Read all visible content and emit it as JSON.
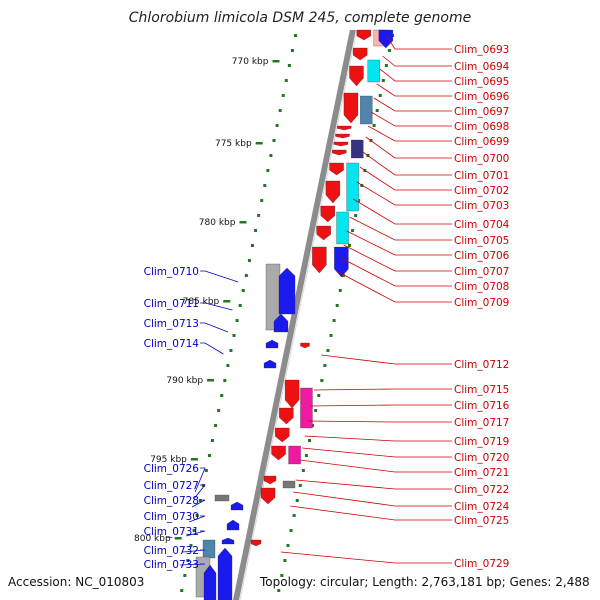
{
  "title": "Chlorobium limicola DSM 245, complete genome",
  "footer": {
    "accession": "Accession: NC_010803",
    "topology": "Topology: circular; Length: 2,763,181 bp; Genes: 2,488"
  },
  "colors": {
    "forward_label": "#cc0000",
    "reverse_label": "#0000cc",
    "backbone": "#8c8c8c",
    "tick": "#227722"
  },
  "scale_ticks": [
    "770 kbp",
    "775 kbp",
    "780 kbp",
    "785 kbp",
    "790 kbp",
    "795 kbp",
    "800 kbp"
  ],
  "forward_genes": [
    "Clim_0693",
    "Clim_0694",
    "Clim_0695",
    "Clim_0696",
    "Clim_0697",
    "Clim_0698",
    "Clim_0699",
    "Clim_0700",
    "Clim_0701",
    "Clim_0702",
    "Clim_0703",
    "Clim_0704",
    "Clim_0705",
    "Clim_0706",
    "Clim_0707",
    "Clim_0708",
    "Clim_0709",
    "Clim_0712",
    "Clim_0715",
    "Clim_0716",
    "Clim_0717",
    "Clim_0719",
    "Clim_0720",
    "Clim_0721",
    "Clim_0722",
    "Clim_0724",
    "Clim_0725",
    "Clim_0729"
  ],
  "reverse_genes": [
    "Clim_0710",
    "Clim_0711",
    "Clim_0713",
    "Clim_0714",
    "Clim_0726",
    "Clim_0727",
    "Clim_0728",
    "Clim_0730",
    "Clim_0731",
    "Clim_0732",
    "Clim_0733"
  ]
}
